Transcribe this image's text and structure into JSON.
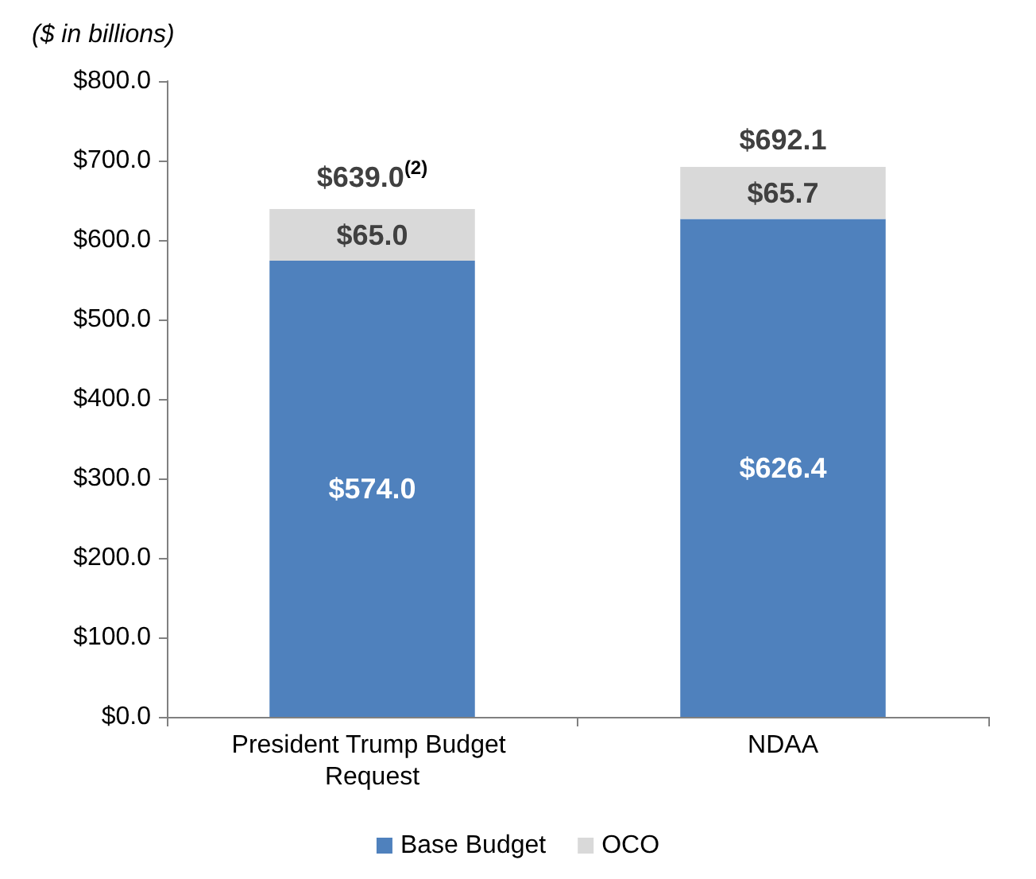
{
  "chart_data": {
    "type": "bar",
    "stacked": true,
    "ylabel": "($ in billions)",
    "categories": [
      "President Trump Budget Request",
      "NDAA"
    ],
    "series": [
      {
        "name": "Base Budget",
        "color": "#4f81bd",
        "values": [
          574.0,
          626.4
        ],
        "value_labels": [
          "$574.0",
          "$626.4"
        ]
      },
      {
        "name": "OCO",
        "color": "#d9d9d9",
        "values": [
          65.0,
          65.7
        ],
        "value_labels": [
          "$65.0",
          "$65.7"
        ]
      }
    ],
    "totals": [
      "$639.0$^{(2)}$",
      "$692.1"
    ],
    "ylim": [
      0,
      800
    ],
    "yticks": [
      {
        "value": 0,
        "label": "$0.0"
      },
      {
        "value": 100,
        "label": "$100.0"
      },
      {
        "value": 200,
        "label": "$200.0"
      },
      {
        "value": 300,
        "label": "$300.0"
      },
      {
        "value": 400,
        "label": "$400.0"
      },
      {
        "value": 500,
        "label": "$500.0"
      },
      {
        "value": 600,
        "label": "$600.0"
      },
      {
        "value": 700,
        "label": "$700.0"
      },
      {
        "value": 800,
        "label": "$800.0"
      }
    ],
    "grid": false,
    "legend": "bottom"
  }
}
